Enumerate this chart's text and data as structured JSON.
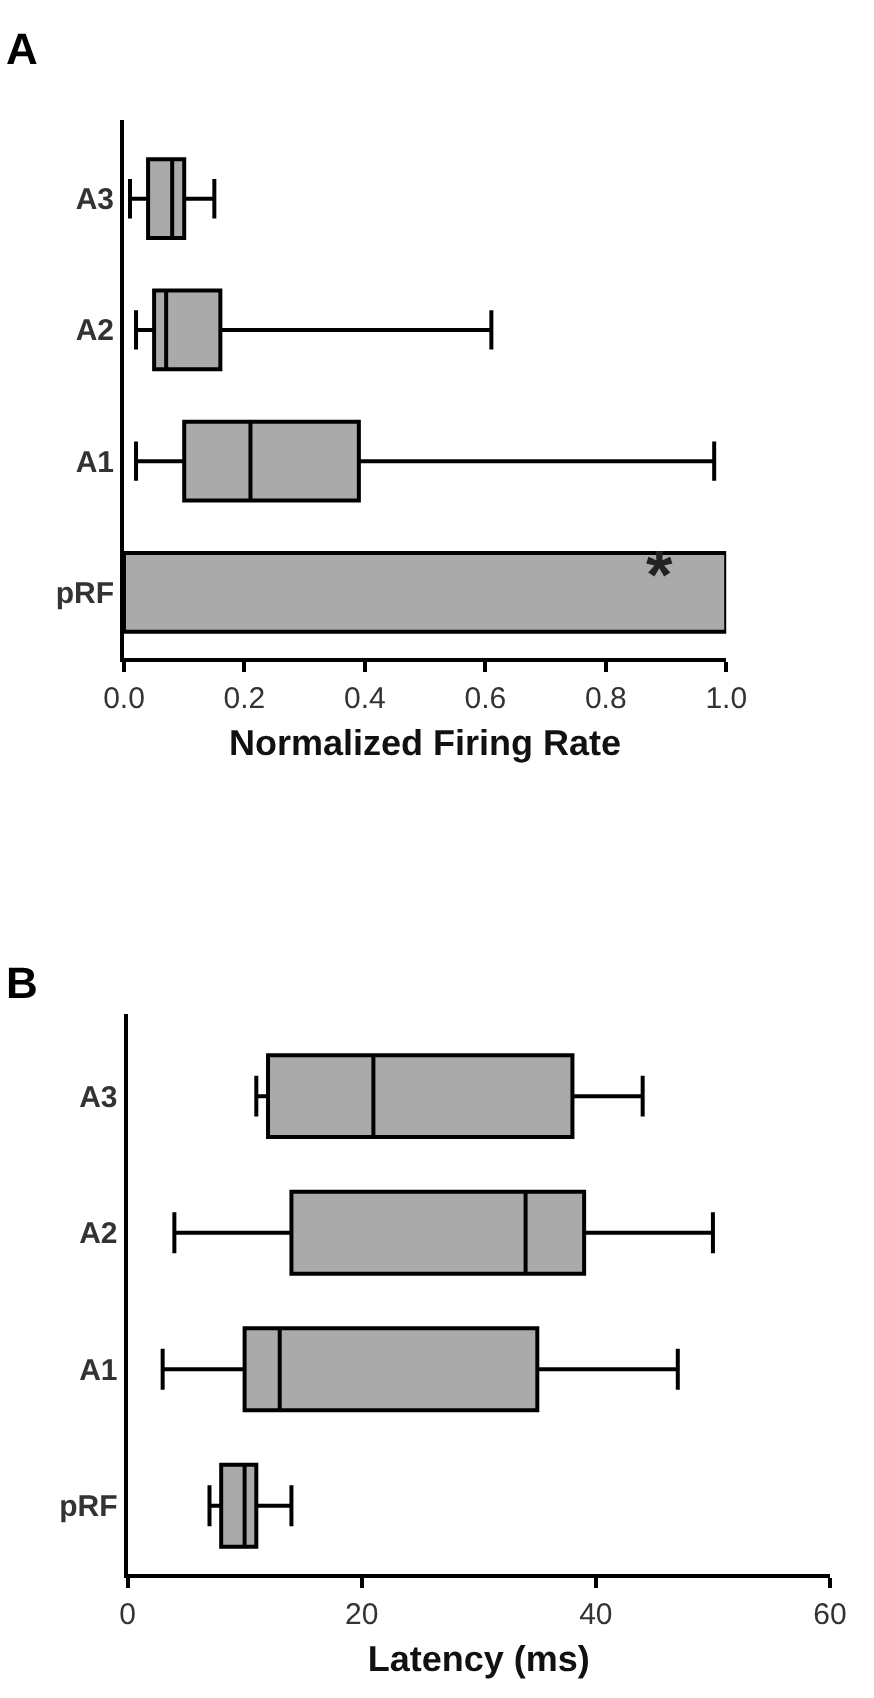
{
  "chart_data": [
    {
      "type": "box",
      "title": "A",
      "xlabel": "Normalized Firing Rate",
      "orientation": "horizontal",
      "categories": [
        "A3",
        "A2",
        "A1",
        "pRF"
      ],
      "xlim": [
        0,
        1.0
      ],
      "xticks": [
        {
          "value": 0,
          "label": "0.0"
        },
        {
          "value": 0.2,
          "label": "0.2"
        },
        {
          "value": 0.4,
          "label": "0.4"
        },
        {
          "value": 0.6,
          "label": "0.6"
        },
        {
          "value": 0.8,
          "label": "0.8"
        },
        {
          "value": 1.0,
          "label": "1.0"
        }
      ],
      "series": [
        {
          "color": "#aaaaaa",
          "boxes": [
            {
              "low": 0.01,
              "q1": 0.04,
              "median": 0.08,
              "q3": 0.1,
              "high": 0.15
            },
            {
              "low": 0.02,
              "q1": 0.05,
              "median": 0.07,
              "q3": 0.16,
              "high": 0.61
            },
            {
              "low": 0.02,
              "q1": 0.1,
              "median": 0.21,
              "q3": 0.39,
              "high": 0.98
            },
            null
          ]
        },
        {
          "type": "bar",
          "color": "#aaaaaa",
          "values": [
            null,
            null,
            null,
            1.0
          ]
        }
      ],
      "annotations": [
        "*"
      ]
    },
    {
      "type": "box",
      "title": "B",
      "xlabel": "Latency (ms)",
      "orientation": "horizontal",
      "categories": [
        "A3",
        "A2",
        "A1",
        "pRF"
      ],
      "xlim": [
        0,
        60
      ],
      "xticks": [
        0,
        20,
        40,
        60
      ],
      "series": [
        {
          "color": "#aaaaaa",
          "boxes": [
            {
              "low": 11,
              "q1": 12,
              "median": 21,
              "q3": 38,
              "high": 44
            },
            {
              "low": 4,
              "q1": 14,
              "median": 34,
              "q3": 39,
              "high": 50
            },
            {
              "low": 3,
              "q1": 10,
              "median": 13,
              "q3": 35,
              "high": 47
            },
            {
              "low": 7,
              "q1": 8,
              "median": 10,
              "q3": 11,
              "high": 14
            }
          ]
        }
      ]
    }
  ]
}
